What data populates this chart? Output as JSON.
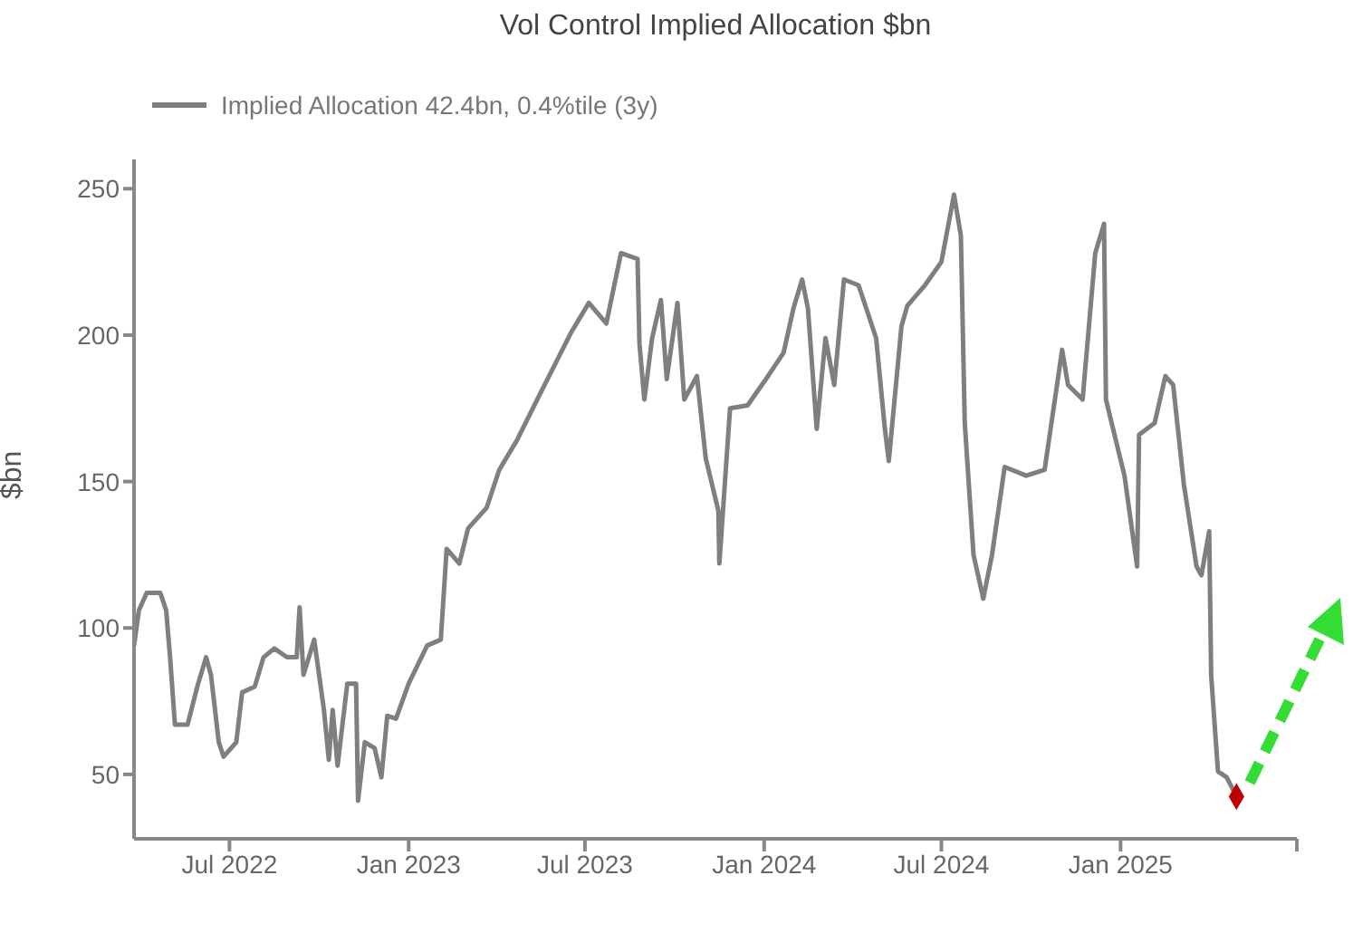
{
  "chart_data": {
    "type": "line",
    "title": "Vol Control Implied Allocation $bn",
    "ylabel": "$bn",
    "legend": "top left",
    "grid": false,
    "xlim": [
      "2022-03-25",
      "2025-07-01"
    ],
    "xticks": [
      {
        "value": "2022-07-01",
        "label": "Jul 2022"
      },
      {
        "value": "2023-01-01",
        "label": "Jan 2023"
      },
      {
        "value": "2023-07-01",
        "label": "Jul 2023"
      },
      {
        "value": "2024-01-01",
        "label": "Jan 2024"
      },
      {
        "value": "2024-07-01",
        "label": "Jul 2024"
      },
      {
        "value": "2025-01-01",
        "label": "Jan 2025"
      },
      {
        "value": "2025-07-01",
        "label": null
      }
    ],
    "ylim": [
      28,
      260
    ],
    "yticks": [
      50,
      100,
      150,
      200,
      250
    ],
    "series": [
      {
        "name": "Implied Allocation 42.4bn, 0.4%tile (3y)",
        "color": "#7f7f7f",
        "marker": "none",
        "line_style": "solid",
        "x": [
          "2022-03-25",
          "2022-03-30",
          "2022-04-07",
          "2022-04-21",
          "2022-04-27",
          "2022-05-01",
          "2022-05-06",
          "2022-05-19",
          "2022-05-29",
          "2022-06-07",
          "2022-06-12",
          "2022-06-20",
          "2022-06-25",
          "2022-07-08",
          "2022-07-14",
          "2022-07-27",
          "2022-08-05",
          "2022-08-16",
          "2022-08-29",
          "2022-09-08",
          "2022-09-11",
          "2022-09-15",
          "2022-09-26",
          "2022-10-06",
          "2022-10-11",
          "2022-10-15",
          "2022-10-20",
          "2022-10-30",
          "2022-11-08",
          "2022-11-10",
          "2022-11-17",
          "2022-11-27",
          "2022-12-04",
          "2022-12-10",
          "2022-12-19",
          "2023-01-01",
          "2023-01-20",
          "2023-02-03",
          "2023-02-09",
          "2023-02-22",
          "2023-03-03",
          "2023-03-22",
          "2023-04-04",
          "2023-04-22",
          "2023-05-16",
          "2023-06-17",
          "2023-07-05",
          "2023-07-23",
          "2023-08-02",
          "2023-08-07",
          "2023-08-24",
          "2023-08-26",
          "2023-08-31",
          "2023-09-08",
          "2023-09-17",
          "2023-09-23",
          "2023-10-04",
          "2023-10-11",
          "2023-10-24",
          "2023-11-02",
          "2023-11-15",
          "2023-11-16",
          "2023-11-27",
          "2023-12-15",
          "2024-01-05",
          "2024-01-21",
          "2024-01-31",
          "2024-02-09",
          "2024-02-15",
          "2024-02-24",
          "2024-03-04",
          "2024-03-13",
          "2024-03-23",
          "2024-04-07",
          "2024-04-25",
          "2024-05-04",
          "2024-05-08",
          "2024-05-21",
          "2024-05-27",
          "2024-06-14",
          "2024-07-01",
          "2024-07-14",
          "2024-07-21",
          "2024-07-25",
          "2024-08-03",
          "2024-08-13",
          "2024-08-22",
          "2024-09-04",
          "2024-09-26",
          "2024-10-15",
          "2024-11-02",
          "2024-11-08",
          "2024-11-23",
          "2024-12-06",
          "2024-12-15",
          "2024-12-17",
          "2025-01-05",
          "2025-01-18",
          "2025-01-20",
          "2025-02-05",
          "2025-02-16",
          "2025-02-24",
          "2025-03-07",
          "2025-03-20",
          "2025-03-25",
          "2025-04-02",
          "2025-04-04",
          "2025-04-11",
          "2025-04-20",
          "2025-04-30"
        ],
        "values": [
          94,
          106,
          112,
          112,
          106,
          90,
          67,
          67,
          80,
          90,
          84,
          61,
          56,
          61,
          78,
          80,
          90,
          93,
          90,
          90,
          107,
          84,
          96,
          72,
          55,
          72,
          53,
          81,
          81,
          41,
          61,
          59,
          49,
          70,
          69,
          81,
          94,
          96,
          127,
          122,
          134,
          141,
          154,
          164,
          180,
          201,
          211,
          204,
          220,
          228,
          226,
          197,
          178,
          199,
          212,
          185,
          211,
          178,
          186,
          158,
          140,
          122,
          175,
          176,
          186,
          194,
          209,
          219,
          209,
          168,
          199,
          183,
          219,
          217,
          199,
          168,
          157,
          203,
          210,
          217,
          225,
          248,
          234,
          170,
          125,
          110,
          125,
          155,
          152,
          154,
          195,
          183,
          178,
          228,
          238,
          178,
          152,
          121,
          166,
          170,
          186,
          183,
          149,
          121,
          118,
          133,
          84,
          51,
          49,
          42.4
        ]
      },
      {
        "type": "scatter",
        "color": "#c00000",
        "marker": "diamond",
        "x": [
          "2025-04-30"
        ],
        "values": [
          42.4
        ]
      }
    ]
  }
}
